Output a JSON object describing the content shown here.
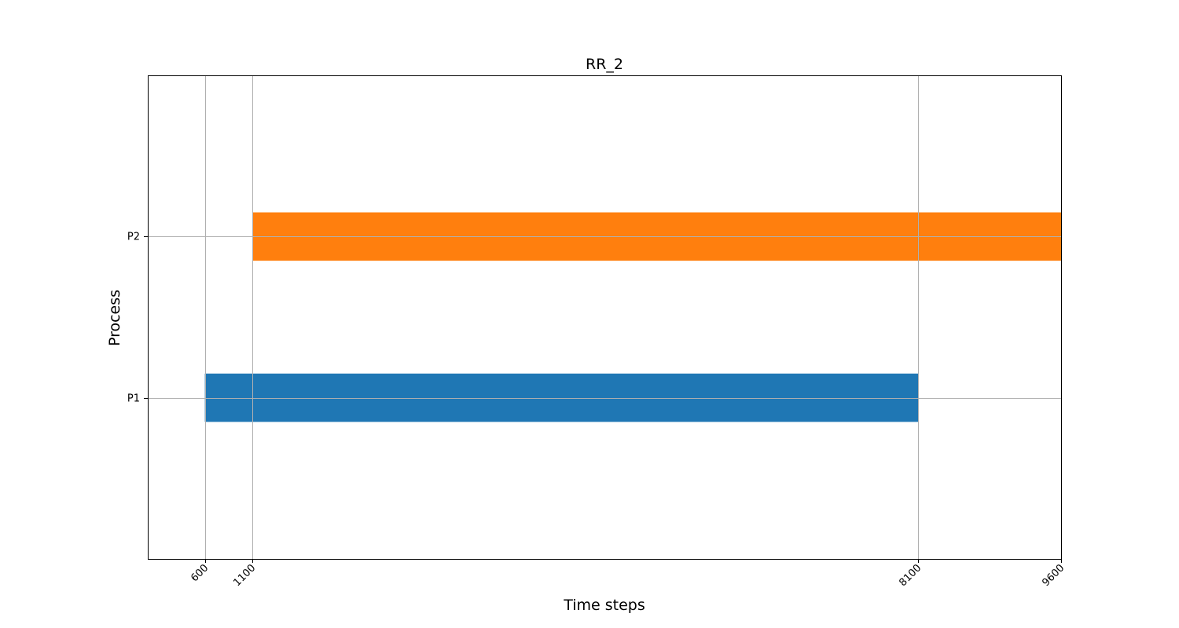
{
  "chart_data": {
    "type": "bar",
    "orientation": "horizontal",
    "title": "RR_2",
    "xlabel": "Time steps",
    "ylabel": "Process",
    "categories": [
      "P1",
      "P2"
    ],
    "series": [
      {
        "category": "P1",
        "start": 600,
        "end": 8100,
        "color": "#1f77b4"
      },
      {
        "category": "P2",
        "start": 1100,
        "end": 9600,
        "color": "#ff7f0e"
      }
    ],
    "xticks": [
      600,
      1100,
      8100,
      9600
    ],
    "xlim": [
      0,
      9600
    ],
    "ylim": [
      0,
      3
    ],
    "grid": true
  }
}
